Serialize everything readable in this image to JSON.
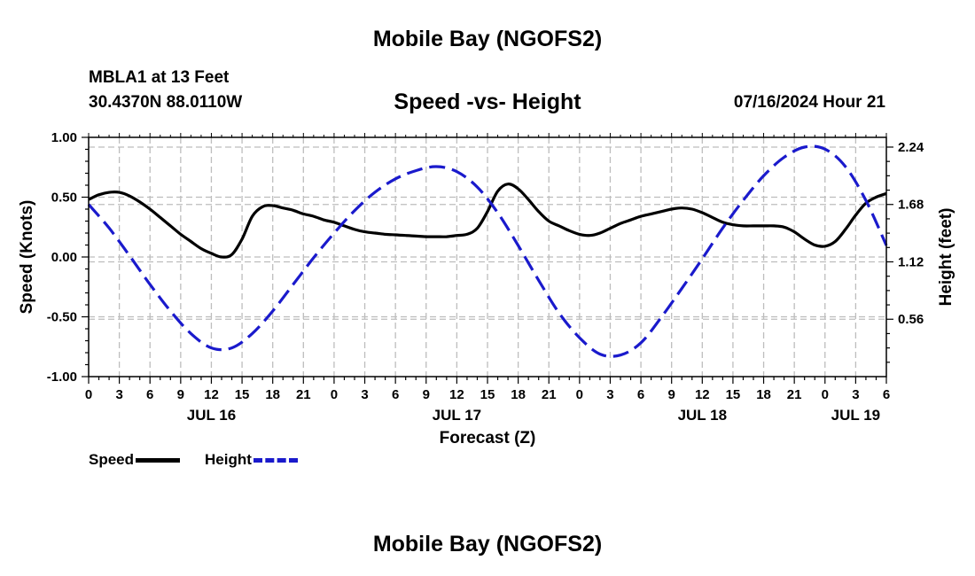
{
  "header": {
    "title": "Mobile Bay (NGOFS2)",
    "station": "MBLA1 at 13 Feet",
    "latlon": "30.4370N  88.0110W",
    "subtitle": "Speed -vs- Height",
    "datetime": "07/16/2024 Hour 21"
  },
  "footer": {
    "title": "Mobile Bay (NGOFS2)"
  },
  "legend": {
    "speed_label": "Speed",
    "height_label": "Height",
    "speed_color": "#000000",
    "height_color": "#1a1acc"
  },
  "chart_data": {
    "type": "line",
    "xlabel": "Forecast (Z)",
    "ylabel": "Speed (Knots)",
    "y2label": "Height (feet)",
    "xlim": [
      0,
      78
    ],
    "ylim": [
      -1.0,
      1.0
    ],
    "y2lim": [
      0.0,
      2.335
    ],
    "x_tick_labels": [
      "0",
      "3",
      "6",
      "9",
      "12",
      "15",
      "18",
      "21",
      "0",
      "3",
      "6",
      "9",
      "12",
      "15",
      "18",
      "21",
      "0",
      "3",
      "6",
      "9",
      "12",
      "15",
      "18",
      "21",
      "0",
      "3",
      "6"
    ],
    "y_tick_labels": [
      "1.00",
      "0.50",
      "0.00",
      "-0.50",
      "-1.00"
    ],
    "y2_tick_labels": [
      "2.24",
      "1.68",
      "1.12",
      "0.56"
    ],
    "date_labels": [
      {
        "label": "JUL 16",
        "x": 12
      },
      {
        "label": "JUL 17",
        "x": 36
      },
      {
        "label": "JUL 18",
        "x": 60
      },
      {
        "label": "JUL 19",
        "x": 75
      }
    ],
    "series": [
      {
        "name": "Speed",
        "axis": "left",
        "style": "solid",
        "x": [
          0,
          1,
          2,
          3,
          4,
          5,
          6,
          7,
          8,
          9,
          10,
          11,
          12,
          13,
          14,
          15,
          16,
          17,
          18,
          19,
          20,
          21,
          22,
          23,
          24,
          25,
          26,
          27,
          28,
          29,
          30,
          31,
          32,
          33,
          34,
          35,
          36,
          37,
          38,
          39,
          40,
          41,
          42,
          43,
          44,
          45,
          46,
          47,
          48,
          49,
          50,
          51,
          52,
          53,
          54,
          55,
          56,
          57,
          58,
          59,
          60,
          61,
          62,
          63,
          64,
          65,
          66,
          67,
          68,
          69,
          70,
          71,
          72,
          73,
          74,
          75,
          76,
          77,
          78
        ],
        "values": [
          0.48,
          0.52,
          0.54,
          0.54,
          0.51,
          0.46,
          0.4,
          0.33,
          0.26,
          0.19,
          0.13,
          0.07,
          0.03,
          0.0,
          0.02,
          0.15,
          0.34,
          0.42,
          0.43,
          0.41,
          0.39,
          0.36,
          0.34,
          0.31,
          0.29,
          0.26,
          0.23,
          0.21,
          0.2,
          0.19,
          0.185,
          0.18,
          0.175,
          0.17,
          0.17,
          0.17,
          0.18,
          0.19,
          0.24,
          0.38,
          0.55,
          0.61,
          0.57,
          0.48,
          0.38,
          0.3,
          0.26,
          0.22,
          0.19,
          0.18,
          0.2,
          0.24,
          0.28,
          0.31,
          0.34,
          0.36,
          0.38,
          0.4,
          0.41,
          0.4,
          0.37,
          0.33,
          0.29,
          0.27,
          0.26,
          0.26,
          0.26,
          0.26,
          0.25,
          0.21,
          0.15,
          0.1,
          0.09,
          0.13,
          0.23,
          0.35,
          0.45,
          0.5,
          0.53
        ]
      },
      {
        "name": "Height",
        "axis": "right",
        "style": "dashed",
        "x": [
          0,
          2,
          4,
          6,
          8,
          10,
          12,
          14,
          16,
          18,
          20,
          22,
          24,
          26,
          28,
          30,
          32,
          34,
          36,
          38,
          40,
          42,
          44,
          46,
          48,
          50,
          52,
          54,
          56,
          58,
          60,
          62,
          64,
          66,
          68,
          70,
          72,
          74,
          76,
          78
        ],
        "values": [
          1.68,
          1.45,
          1.18,
          0.9,
          0.64,
          0.42,
          0.28,
          0.28,
          0.42,
          0.64,
          0.9,
          1.16,
          1.4,
          1.62,
          1.8,
          1.93,
          2.01,
          2.05,
          2.0,
          1.85,
          1.6,
          1.28,
          0.94,
          0.62,
          0.38,
          0.22,
          0.21,
          0.33,
          0.58,
          0.86,
          1.15,
          1.45,
          1.72,
          1.96,
          2.14,
          2.24,
          2.22,
          2.05,
          1.72,
          1.28
        ]
      }
    ]
  }
}
